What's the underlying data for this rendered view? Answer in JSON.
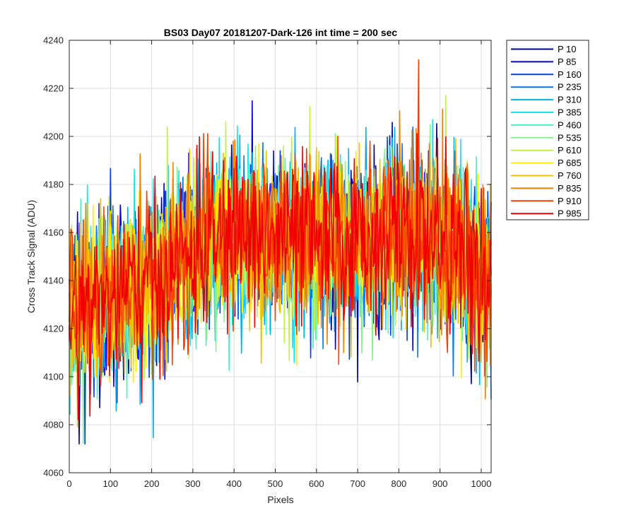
{
  "chart_data": {
    "type": "line",
    "title": "BS03 Day07 20181207-Dark-126 int time = 200 sec",
    "xlabel": "Pixels",
    "ylabel": "Cross Track Signal (ADU)",
    "xlim": [
      0,
      1024
    ],
    "ylim": [
      4060,
      4240
    ],
    "xticks": [
      0,
      100,
      200,
      300,
      400,
      500,
      600,
      700,
      800,
      900,
      1000
    ],
    "yticks": [
      4060,
      4080,
      4100,
      4120,
      4140,
      4160,
      4180,
      4200,
      4220,
      4240
    ],
    "grid": true,
    "legend_position": "outside-top-right",
    "baseline_profile": {
      "x": [
        0,
        100,
        200,
        300,
        400,
        500,
        600,
        700,
        800,
        900,
        960,
        1024
      ],
      "y": [
        4128,
        4133,
        4138,
        4152,
        4160,
        4158,
        4156,
        4157,
        4160,
        4158,
        4150,
        4135
      ]
    },
    "noise_std_adu": 17,
    "series": [
      {
        "name": "P 10",
        "color": "#0000a8"
      },
      {
        "name": "P 85",
        "color": "#0000d6"
      },
      {
        "name": "P 160",
        "color": "#0040f0"
      },
      {
        "name": "P 235",
        "color": "#0078f0"
      },
      {
        "name": "P 310",
        "color": "#00b0f0"
      },
      {
        "name": "P 385",
        "color": "#10e8f0"
      },
      {
        "name": "P 460",
        "color": "#48f0c8"
      },
      {
        "name": "P 535",
        "color": "#88f090"
      },
      {
        "name": "P 610",
        "color": "#c0f050"
      },
      {
        "name": "P 685",
        "color": "#f8f000"
      },
      {
        "name": "P 760",
        "color": "#f0c000"
      },
      {
        "name": "P 835",
        "color": "#f88000"
      },
      {
        "name": "P 910",
        "color": "#f84000"
      },
      {
        "name": "P 985",
        "color": "#f00000"
      }
    ]
  }
}
